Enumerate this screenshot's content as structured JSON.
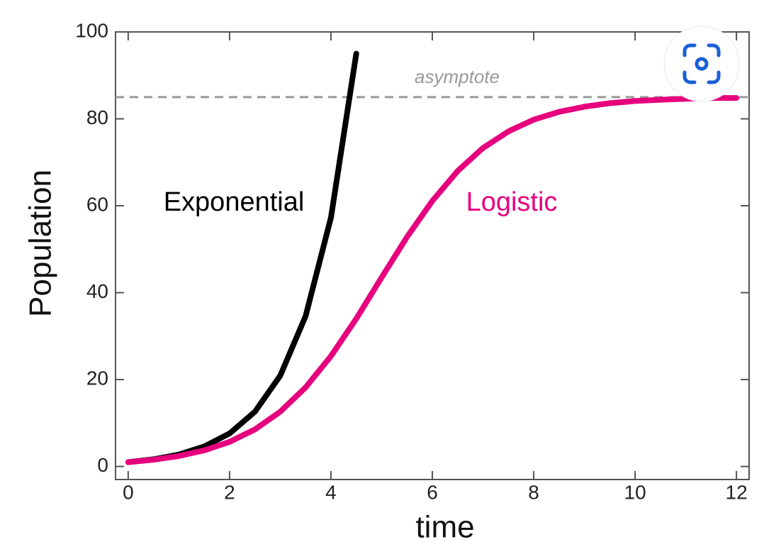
{
  "chart_data": {
    "type": "line",
    "x_label": "time",
    "y_label": "Population",
    "x": [
      0,
      0.5,
      1,
      1.5,
      2,
      2.5,
      3,
      3.5,
      4,
      4.5,
      5,
      5.5,
      6,
      6.5,
      7,
      7.5,
      8,
      8.5,
      9,
      9.5,
      10,
      10.5,
      11,
      11.5,
      12
    ],
    "series": [
      {
        "name": "Exponential",
        "color": "#000000",
        "values": [
          1,
          1.66,
          2.75,
          4.6,
          7.6,
          12.6,
          20.9,
          34.6,
          57.3,
          95,
          null,
          null,
          null,
          null,
          null,
          null,
          null,
          null,
          null,
          null,
          null,
          null,
          null,
          null,
          null
        ]
      },
      {
        "name": "Logistic",
        "color": "#e6007e",
        "values": [
          1,
          1.56,
          2.41,
          3.71,
          5.67,
          8.53,
          12.6,
          18.2,
          25.4,
          34,
          43.5,
          52.8,
          61.1,
          68,
          73.3,
          77.1,
          79.8,
          81.6,
          82.8,
          83.6,
          84.1,
          84.4,
          84.6,
          84.8,
          84.8
        ]
      }
    ],
    "annotations": [
      {
        "text": "asymptote",
        "y": 85
      }
    ],
    "xlim": [
      -0.25,
      12.25
    ],
    "ylim": [
      -3,
      100
    ],
    "xticks": [
      0,
      2,
      4,
      6,
      8,
      10,
      12
    ],
    "yticks": [
      0,
      20,
      40,
      60,
      80,
      100
    ],
    "grid": false
  }
}
